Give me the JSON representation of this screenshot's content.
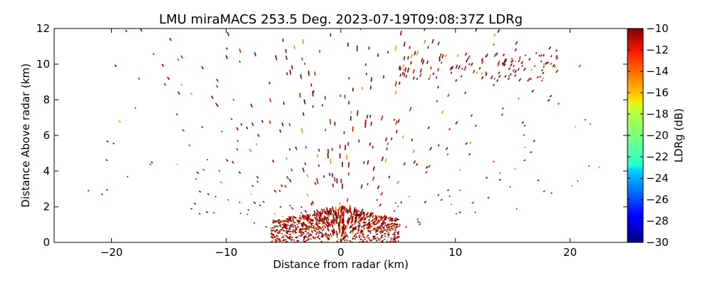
{
  "chart_data": {
    "type": "heatmap",
    "title": "LMU miraMACS 253.5 Deg. 2023-07-19T09:08:37Z  LDRg",
    "xlabel": "Distance from radar (km)",
    "ylabel": "Distance Above radar  (km)",
    "xlim": [
      -25,
      25
    ],
    "ylim": [
      0,
      12
    ],
    "x_ticks": [
      "−20",
      "−10",
      "0",
      "10",
      "20"
    ],
    "x_tick_values": [
      -20,
      -10,
      0,
      10,
      20
    ],
    "y_ticks": [
      "0",
      "2",
      "4",
      "6",
      "8",
      "10",
      "12"
    ],
    "y_tick_values": [
      0,
      2,
      4,
      6,
      8,
      10,
      12
    ],
    "colorbar": {
      "label": "LDRg (dB)",
      "range": [
        -30,
        -10
      ],
      "ticks": [
        "−10",
        "−12",
        "−14",
        "−16",
        "−18",
        "−20",
        "−22",
        "−24",
        "−26",
        "−28",
        "−30"
      ],
      "tick_values": [
        -10,
        -12,
        -14,
        -16,
        -18,
        -20,
        -22,
        -24,
        -26,
        -28,
        -30
      ],
      "colormap": "jet"
    },
    "grid": false,
    "dominant_value_db": -11,
    "scatter_regions": [
      {
        "region": "near-radar dense clutter",
        "x_range": [
          -6,
          5
        ],
        "y_range": [
          0,
          2
        ]
      },
      {
        "region": "upper-level echoes",
        "x_range": [
          5,
          19
        ],
        "y_range": [
          9,
          10.5
        ]
      }
    ]
  },
  "colors": {
    "background": "#ffffff",
    "frame": "#000000",
    "dominant_echo": "#8b0000",
    "secondary_echo": "#e01a00",
    "warm_echo": "#ff8c00"
  }
}
